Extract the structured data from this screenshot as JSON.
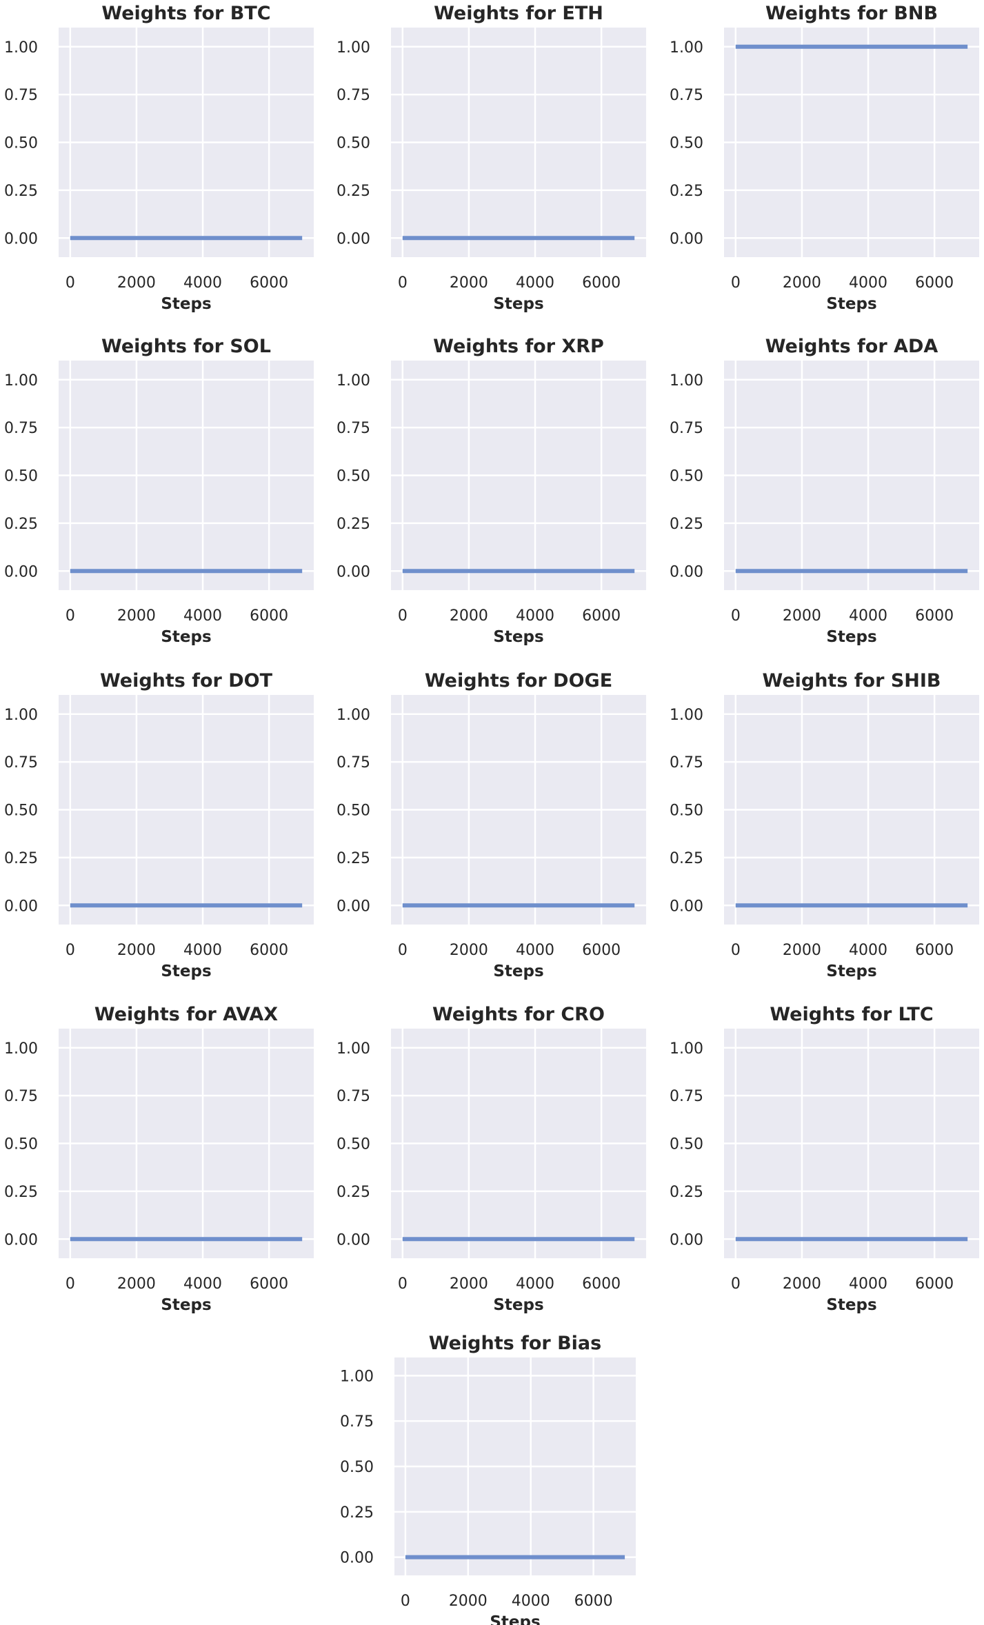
{
  "figure": {
    "background": "#ffffff",
    "plot_background": "#eaeaf2",
    "grid_color": "#ffffff",
    "line_color": "#6f8fcc",
    "text_color": "#262626"
  },
  "chart_data": [
    {
      "type": "line",
      "title": "Weights for BTC",
      "xlabel": "Steps",
      "ylabel": "",
      "xlim": [
        -350,
        7350
      ],
      "ylim": [
        -0.1,
        1.1
      ],
      "xticks": [
        0,
        2000,
        4000,
        6000
      ],
      "xtick_labels": [
        "0",
        "2000",
        "4000",
        "6000"
      ],
      "yticks": [
        0,
        0.25,
        0.5,
        0.75,
        1.0
      ],
      "ytick_labels": [
        "0.00",
        "0.25",
        "0.50",
        "0.75",
        "1.00"
      ],
      "grid": true,
      "series": [
        {
          "x": [
            0,
            7000
          ],
          "y": [
            0.0,
            0.0
          ]
        }
      ]
    },
    {
      "type": "line",
      "title": "Weights for ETH",
      "xlabel": "Steps",
      "ylabel": "",
      "xlim": [
        -350,
        7350
      ],
      "ylim": [
        -0.1,
        1.1
      ],
      "xticks": [
        0,
        2000,
        4000,
        6000
      ],
      "xtick_labels": [
        "0",
        "2000",
        "4000",
        "6000"
      ],
      "yticks": [
        0,
        0.25,
        0.5,
        0.75,
        1.0
      ],
      "ytick_labels": [
        "0.00",
        "0.25",
        "0.50",
        "0.75",
        "1.00"
      ],
      "grid": true,
      "series": [
        {
          "x": [
            0,
            7000
          ],
          "y": [
            0.0,
            0.0
          ]
        }
      ]
    },
    {
      "type": "line",
      "title": "Weights for BNB",
      "xlabel": "Steps",
      "ylabel": "",
      "xlim": [
        -350,
        7350
      ],
      "ylim": [
        -0.1,
        1.1
      ],
      "xticks": [
        0,
        2000,
        4000,
        6000
      ],
      "xtick_labels": [
        "0",
        "2000",
        "4000",
        "6000"
      ],
      "yticks": [
        0,
        0.25,
        0.5,
        0.75,
        1.0
      ],
      "ytick_labels": [
        "0.00",
        "0.25",
        "0.50",
        "0.75",
        "1.00"
      ],
      "grid": true,
      "series": [
        {
          "x": [
            0,
            7000
          ],
          "y": [
            1.0,
            1.0
          ]
        }
      ]
    },
    {
      "type": "line",
      "title": "Weights for SOL",
      "xlabel": "Steps",
      "ylabel": "",
      "xlim": [
        -350,
        7350
      ],
      "ylim": [
        -0.1,
        1.1
      ],
      "xticks": [
        0,
        2000,
        4000,
        6000
      ],
      "xtick_labels": [
        "0",
        "2000",
        "4000",
        "6000"
      ],
      "yticks": [
        0,
        0.25,
        0.5,
        0.75,
        1.0
      ],
      "ytick_labels": [
        "0.00",
        "0.25",
        "0.50",
        "0.75",
        "1.00"
      ],
      "grid": true,
      "series": [
        {
          "x": [
            0,
            7000
          ],
          "y": [
            0.0,
            0.0
          ]
        }
      ]
    },
    {
      "type": "line",
      "title": "Weights for XRP",
      "xlabel": "Steps",
      "ylabel": "",
      "xlim": [
        -350,
        7350
      ],
      "ylim": [
        -0.1,
        1.1
      ],
      "xticks": [
        0,
        2000,
        4000,
        6000
      ],
      "xtick_labels": [
        "0",
        "2000",
        "4000",
        "6000"
      ],
      "yticks": [
        0,
        0.25,
        0.5,
        0.75,
        1.0
      ],
      "ytick_labels": [
        "0.00",
        "0.25",
        "0.50",
        "0.75",
        "1.00"
      ],
      "grid": true,
      "series": [
        {
          "x": [
            0,
            7000
          ],
          "y": [
            0.0,
            0.0
          ]
        }
      ]
    },
    {
      "type": "line",
      "title": "Weights for ADA",
      "xlabel": "Steps",
      "ylabel": "",
      "xlim": [
        -350,
        7350
      ],
      "ylim": [
        -0.1,
        1.1
      ],
      "xticks": [
        0,
        2000,
        4000,
        6000
      ],
      "xtick_labels": [
        "0",
        "2000",
        "4000",
        "6000"
      ],
      "yticks": [
        0,
        0.25,
        0.5,
        0.75,
        1.0
      ],
      "ytick_labels": [
        "0.00",
        "0.25",
        "0.50",
        "0.75",
        "1.00"
      ],
      "grid": true,
      "series": [
        {
          "x": [
            0,
            7000
          ],
          "y": [
            0.0,
            0.0
          ]
        }
      ]
    },
    {
      "type": "line",
      "title": "Weights for DOT",
      "xlabel": "Steps",
      "ylabel": "",
      "xlim": [
        -350,
        7350
      ],
      "ylim": [
        -0.1,
        1.1
      ],
      "xticks": [
        0,
        2000,
        4000,
        6000
      ],
      "xtick_labels": [
        "0",
        "2000",
        "4000",
        "6000"
      ],
      "yticks": [
        0,
        0.25,
        0.5,
        0.75,
        1.0
      ],
      "ytick_labels": [
        "0.00",
        "0.25",
        "0.50",
        "0.75",
        "1.00"
      ],
      "grid": true,
      "series": [
        {
          "x": [
            0,
            7000
          ],
          "y": [
            0.0,
            0.0
          ]
        }
      ]
    },
    {
      "type": "line",
      "title": "Weights for DOGE",
      "xlabel": "Steps",
      "ylabel": "",
      "xlim": [
        -350,
        7350
      ],
      "ylim": [
        -0.1,
        1.1
      ],
      "xticks": [
        0,
        2000,
        4000,
        6000
      ],
      "xtick_labels": [
        "0",
        "2000",
        "4000",
        "6000"
      ],
      "yticks": [
        0,
        0.25,
        0.5,
        0.75,
        1.0
      ],
      "ytick_labels": [
        "0.00",
        "0.25",
        "0.50",
        "0.75",
        "1.00"
      ],
      "grid": true,
      "series": [
        {
          "x": [
            0,
            7000
          ],
          "y": [
            0.0,
            0.0
          ]
        }
      ]
    },
    {
      "type": "line",
      "title": "Weights for SHIB",
      "xlabel": "Steps",
      "ylabel": "",
      "xlim": [
        -350,
        7350
      ],
      "ylim": [
        -0.1,
        1.1
      ],
      "xticks": [
        0,
        2000,
        4000,
        6000
      ],
      "xtick_labels": [
        "0",
        "2000",
        "4000",
        "6000"
      ],
      "yticks": [
        0,
        0.25,
        0.5,
        0.75,
        1.0
      ],
      "ytick_labels": [
        "0.00",
        "0.25",
        "0.50",
        "0.75",
        "1.00"
      ],
      "grid": true,
      "series": [
        {
          "x": [
            0,
            7000
          ],
          "y": [
            0.0,
            0.0
          ]
        }
      ]
    },
    {
      "type": "line",
      "title": "Weights for AVAX",
      "xlabel": "Steps",
      "ylabel": "",
      "xlim": [
        -350,
        7350
      ],
      "ylim": [
        -0.1,
        1.1
      ],
      "xticks": [
        0,
        2000,
        4000,
        6000
      ],
      "xtick_labels": [
        "0",
        "2000",
        "4000",
        "6000"
      ],
      "yticks": [
        0,
        0.25,
        0.5,
        0.75,
        1.0
      ],
      "ytick_labels": [
        "0.00",
        "0.25",
        "0.50",
        "0.75",
        "1.00"
      ],
      "grid": true,
      "series": [
        {
          "x": [
            0,
            7000
          ],
          "y": [
            0.0,
            0.0
          ]
        }
      ]
    },
    {
      "type": "line",
      "title": "Weights for CRO",
      "xlabel": "Steps",
      "ylabel": "",
      "xlim": [
        -350,
        7350
      ],
      "ylim": [
        -0.1,
        1.1
      ],
      "xticks": [
        0,
        2000,
        4000,
        6000
      ],
      "xtick_labels": [
        "0",
        "2000",
        "4000",
        "6000"
      ],
      "yticks": [
        0,
        0.25,
        0.5,
        0.75,
        1.0
      ],
      "ytick_labels": [
        "0.00",
        "0.25",
        "0.50",
        "0.75",
        "1.00"
      ],
      "grid": true,
      "series": [
        {
          "x": [
            0,
            7000
          ],
          "y": [
            0.0,
            0.0
          ]
        }
      ]
    },
    {
      "type": "line",
      "title": "Weights for LTC",
      "xlabel": "Steps",
      "ylabel": "",
      "xlim": [
        -350,
        7350
      ],
      "ylim": [
        -0.1,
        1.1
      ],
      "xticks": [
        0,
        2000,
        4000,
        6000
      ],
      "xtick_labels": [
        "0",
        "2000",
        "4000",
        "6000"
      ],
      "yticks": [
        0,
        0.25,
        0.5,
        0.75,
        1.0
      ],
      "ytick_labels": [
        "0.00",
        "0.25",
        "0.50",
        "0.75",
        "1.00"
      ],
      "grid": true,
      "series": [
        {
          "x": [
            0,
            7000
          ],
          "y": [
            0.0,
            0.0
          ]
        }
      ]
    },
    {
      "type": "line",
      "title": "Weights for Bias",
      "xlabel": "Steps",
      "ylabel": "",
      "xlim": [
        -350,
        7350
      ],
      "ylim": [
        -0.1,
        1.1
      ],
      "xticks": [
        0,
        2000,
        4000,
        6000
      ],
      "xtick_labels": [
        "0",
        "2000",
        "4000",
        "6000"
      ],
      "yticks": [
        0,
        0.25,
        0.5,
        0.75,
        1.0
      ],
      "ytick_labels": [
        "0.00",
        "0.25",
        "0.50",
        "0.75",
        "1.00"
      ],
      "grid": true,
      "series": [
        {
          "x": [
            0,
            7000
          ],
          "y": [
            0.0,
            0.0
          ]
        }
      ]
    }
  ]
}
